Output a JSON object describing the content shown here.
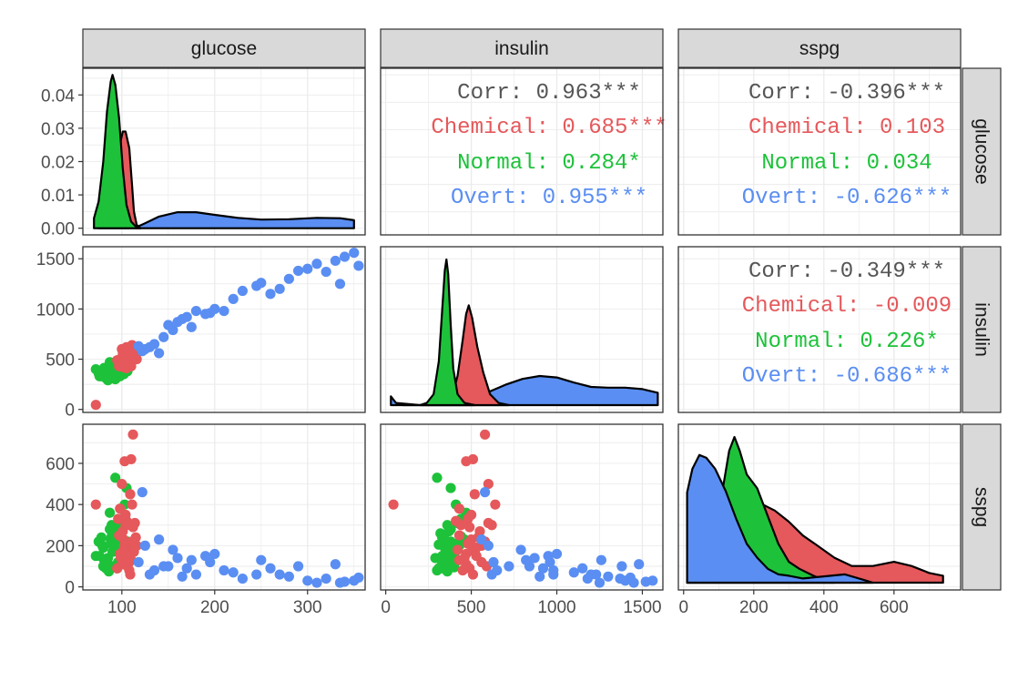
{
  "chart_data": {
    "type": "scatter-matrix",
    "variables": [
      "glucose",
      "insulin",
      "sspg"
    ],
    "groups": [
      {
        "name": "Chemical",
        "color": "#E5585B"
      },
      {
        "name": "Normal",
        "color": "#1DC23A"
      },
      {
        "name": "Overt",
        "color": "#5A8EF2"
      }
    ],
    "axes": {
      "glucose": {
        "range": [
          58,
          362
        ],
        "ticks": [
          100,
          200,
          300
        ]
      },
      "insulin": {
        "range": [
          -30,
          1620
        ],
        "ticks": [
          0,
          500,
          1000,
          1500
        ]
      },
      "sspg": {
        "range": [
          -15,
          790
        ],
        "ticks": [
          0,
          200,
          400,
          600
        ]
      },
      "glucose_density": {
        "range": [
          -0.002,
          0.048
        ],
        "ticks": [
          "0.00",
          "0.01",
          "0.02",
          "0.03",
          "0.04"
        ]
      }
    },
    "correlations": [
      {
        "pair": [
          "insulin",
          "glucose"
        ],
        "lines": [
          {
            "label": "Corr:",
            "value": "0.963***",
            "group": "all"
          },
          {
            "label": "Chemical:",
            "value": "0.685***",
            "group": "Chemical"
          },
          {
            "label": "Normal:",
            "value": "0.284*",
            "group": "Normal"
          },
          {
            "label": "Overt:",
            "value": "0.955***",
            "group": "Overt"
          }
        ]
      },
      {
        "pair": [
          "sspg",
          "glucose"
        ],
        "lines": [
          {
            "label": "Corr:",
            "value": "-0.396***",
            "group": "all"
          },
          {
            "label": "Chemical:",
            "value": "0.103",
            "group": "Chemical"
          },
          {
            "label": "Normal:",
            "value": "0.034",
            "group": "Normal"
          },
          {
            "label": "Overt:",
            "value": "-0.626***",
            "group": "Overt"
          }
        ]
      },
      {
        "pair": [
          "sspg",
          "insulin"
        ],
        "lines": [
          {
            "label": "Corr:",
            "value": "-0.349***",
            "group": "all"
          },
          {
            "label": "Chemical:",
            "value": "-0.009",
            "group": "Chemical"
          },
          {
            "label": "Normal:",
            "value": "0.226*",
            "group": "Normal"
          },
          {
            "label": "Overt:",
            "value": "-0.686***",
            "group": "Overt"
          }
        ]
      }
    ],
    "densities": {
      "glucose": {
        "Normal": [
          [
            70,
            0.003
          ],
          [
            75,
            0.008
          ],
          [
            80,
            0.02
          ],
          [
            84,
            0.035
          ],
          [
            88,
            0.044
          ],
          [
            90,
            0.046
          ],
          [
            93,
            0.043
          ],
          [
            97,
            0.033
          ],
          [
            101,
            0.018
          ],
          [
            105,
            0.007
          ],
          [
            110,
            0.002
          ],
          [
            115,
            0.0005
          ],
          [
            120,
            0
          ]
        ],
        "Chemical": [
          [
            75,
            0
          ],
          [
            80,
            0.002
          ],
          [
            86,
            0.006
          ],
          [
            92,
            0.014
          ],
          [
            97,
            0.024
          ],
          [
            101,
            0.029
          ],
          [
            104,
            0.029
          ],
          [
            108,
            0.024
          ],
          [
            111,
            0.013
          ],
          [
            113,
            0.005
          ],
          [
            116,
            0.001
          ],
          [
            120,
            0
          ]
        ],
        "Overt": [
          [
            115,
            0.0002
          ],
          [
            125,
            0.0015
          ],
          [
            140,
            0.0035
          ],
          [
            160,
            0.0048
          ],
          [
            180,
            0.0048
          ],
          [
            200,
            0.004
          ],
          [
            225,
            0.0031
          ],
          [
            250,
            0.0026
          ],
          [
            280,
            0.0027
          ],
          [
            310,
            0.0031
          ],
          [
            335,
            0.003
          ],
          [
            350,
            0.0024
          ]
        ]
      },
      "insulin": {
        "Normal": [
          [
            200,
            0
          ],
          [
            240,
            0.0003
          ],
          [
            280,
            0.0015
          ],
          [
            310,
            0.006
          ],
          [
            330,
            0.013
          ],
          [
            345,
            0.0185
          ],
          [
            355,
            0.02
          ],
          [
            365,
            0.018
          ],
          [
            380,
            0.011
          ],
          [
            395,
            0.005
          ],
          [
            420,
            0.0015
          ],
          [
            460,
            0.0003
          ],
          [
            520,
            0
          ]
        ],
        "Chemical": [
          [
            100,
            0
          ],
          [
            280,
            0
          ],
          [
            380,
            0.0005
          ],
          [
            420,
            0.004
          ],
          [
            450,
            0.009
          ],
          [
            470,
            0.0125
          ],
          [
            485,
            0.0137
          ],
          [
            505,
            0.012
          ],
          [
            535,
            0.008
          ],
          [
            570,
            0.0045
          ],
          [
            610,
            0.0015
          ],
          [
            660,
            0.0003
          ],
          [
            720,
            0
          ]
        ],
        "Overt": [
          [
            30,
            0.0012
          ],
          [
            60,
            0.0003
          ],
          [
            200,
            0
          ],
          [
            400,
            0.0003
          ],
          [
            500,
            0.0008
          ],
          [
            600,
            0.0018
          ],
          [
            700,
            0.0028
          ],
          [
            800,
            0.0036
          ],
          [
            900,
            0.004
          ],
          [
            1000,
            0.0038
          ],
          [
            1100,
            0.0031
          ],
          [
            1200,
            0.0025
          ],
          [
            1300,
            0.0024
          ],
          [
            1400,
            0.0024
          ],
          [
            1500,
            0.0022
          ],
          [
            1590,
            0.0017
          ]
        ]
      },
      "sspg": {
        "Normal": [
          [
            10,
            0
          ],
          [
            60,
            0.0005
          ],
          [
            90,
            0.002
          ],
          [
            110,
            0.0065
          ],
          [
            130,
            0.0095
          ],
          [
            145,
            0.0105
          ],
          [
            160,
            0.0095
          ],
          [
            180,
            0.0078
          ],
          [
            210,
            0.0068
          ],
          [
            240,
            0.0048
          ],
          [
            270,
            0.0028
          ],
          [
            300,
            0.0015
          ],
          [
            330,
            0.001
          ],
          [
            370,
            0.0005
          ],
          [
            400,
            0.0002
          ],
          [
            430,
            0
          ]
        ],
        "Chemical": [
          [
            10,
            0.0003
          ],
          [
            40,
            0.0015
          ],
          [
            70,
            0.003
          ],
          [
            100,
            0.0044
          ],
          [
            140,
            0.0054
          ],
          [
            180,
            0.0058
          ],
          [
            220,
            0.0057
          ],
          [
            260,
            0.0052
          ],
          [
            300,
            0.0044
          ],
          [
            340,
            0.0034
          ],
          [
            380,
            0.0027
          ],
          [
            430,
            0.0018
          ],
          [
            480,
            0.0012
          ],
          [
            540,
            0.0012
          ],
          [
            600,
            0.0015
          ],
          [
            650,
            0.0012
          ],
          [
            700,
            0.0007
          ],
          [
            740,
            0.0005
          ]
        ],
        "Overt": [
          [
            10,
            0.0065
          ],
          [
            25,
            0.0082
          ],
          [
            45,
            0.0092
          ],
          [
            65,
            0.009
          ],
          [
            90,
            0.0082
          ],
          [
            120,
            0.0066
          ],
          [
            150,
            0.0046
          ],
          [
            180,
            0.0028
          ],
          [
            210,
            0.0018
          ],
          [
            240,
            0.001
          ],
          [
            270,
            0.0006
          ],
          [
            300,
            0.0005
          ],
          [
            340,
            0.0003
          ],
          [
            380,
            0.0004
          ],
          [
            420,
            0.0005
          ],
          [
            460,
            0.0006
          ],
          [
            500,
            0.0003
          ],
          [
            540,
            0
          ]
        ]
      }
    },
    "points": {
      "Normal": [
        [
          81,
          413,
          130
        ],
        [
          84,
          370,
          110
        ],
        [
          80,
          345,
          190
        ],
        [
          75,
          360,
          220
        ],
        [
          72,
          400,
          150
        ],
        [
          78,
          330,
          240
        ],
        [
          86,
          300,
          80
        ],
        [
          90,
          350,
          100
        ],
        [
          88,
          420,
          210
        ],
        [
          94,
          380,
          180
        ],
        [
          92,
          320,
          260
        ],
        [
          96,
          400,
          120
        ],
        [
          85,
          290,
          140
        ],
        [
          83,
          310,
          90
        ],
        [
          89,
          360,
          300
        ],
        [
          91,
          430,
          200
        ],
        [
          95,
          350,
          170
        ],
        [
          98,
          460,
          230
        ],
        [
          100,
          390,
          160
        ],
        [
          97,
          340,
          250
        ],
        [
          101,
          370,
          290
        ],
        [
          103,
          410,
          400
        ],
        [
          99,
          440,
          330
        ],
        [
          93,
          300,
          530
        ],
        [
          87,
          380,
          280
        ],
        [
          79,
          350,
          200
        ],
        [
          76,
          330,
          150
        ],
        [
          82,
          400,
          110
        ],
        [
          86,
          360,
          75
        ],
        [
          104,
          420,
          190
        ],
        [
          106,
          380,
          220
        ],
        [
          102,
          350,
          140
        ],
        [
          95,
          330,
          90
        ],
        [
          90,
          390,
          170
        ],
        [
          88,
          340,
          230
        ],
        [
          84,
          410,
          130
        ],
        [
          80,
          360,
          100
        ],
        [
          92,
          370,
          270
        ],
        [
          96,
          420,
          310
        ],
        [
          100,
          350,
          185
        ],
        [
          98,
          330,
          120
        ],
        [
          94,
          400,
          95
        ],
        [
          89,
          440,
          245
        ],
        [
          91,
          310,
          205
        ],
        [
          87,
          470,
          360
        ],
        [
          105,
          380,
          480
        ]
      ],
      "Chemical": [
        [
          72,
          45,
          400
        ],
        [
          98,
          470,
          160
        ],
        [
          102,
          500,
          230
        ],
        [
          104,
          440,
          300
        ],
        [
          106,
          530,
          190
        ],
        [
          108,
          560,
          120
        ],
        [
          100,
          600,
          500
        ],
        [
          103,
          470,
          610
        ],
        [
          110,
          510,
          620
        ],
        [
          112,
          580,
          740
        ],
        [
          95,
          490,
          90
        ],
        [
          97,
          430,
          250
        ],
        [
          105,
          410,
          320
        ],
        [
          109,
          520,
          450
        ],
        [
          111,
          640,
          400
        ],
        [
          114,
          600,
          310
        ],
        [
          107,
          480,
          210
        ],
        [
          99,
          460,
          140
        ],
        [
          101,
          550,
          270
        ],
        [
          104,
          500,
          350
        ],
        [
          113,
          520,
          170
        ],
        [
          106,
          590,
          100
        ],
        [
          108,
          450,
          80
        ],
        [
          110,
          430,
          130
        ],
        [
          103,
          560,
          200
        ],
        [
          96,
          480,
          330
        ],
        [
          112,
          490,
          290
        ],
        [
          115,
          540,
          240
        ],
        [
          102,
          420,
          180
        ],
        [
          100,
          470,
          110
        ],
        [
          109,
          510,
          60
        ],
        [
          111,
          580,
          220
        ],
        [
          105,
          620,
          300
        ],
        [
          98,
          430,
          380
        ],
        [
          116,
          500,
          200
        ],
        [
          107,
          530,
          150
        ]
      ],
      "Overt": [
        [
          118,
          630,
          120
        ],
        [
          122,
          580,
          460
        ],
        [
          130,
          620,
          60
        ],
        [
          140,
          560,
          230
        ],
        [
          150,
          840,
          100
        ],
        [
          155,
          790,
          180
        ],
        [
          160,
          870,
          140
        ],
        [
          170,
          920,
          90
        ],
        [
          180,
          980,
          60
        ],
        [
          190,
          950,
          150
        ],
        [
          200,
          1000,
          160
        ],
        [
          210,
          980,
          80
        ],
        [
          220,
          1100,
          70
        ],
        [
          230,
          1180,
          40
        ],
        [
          250,
          1260,
          130
        ],
        [
          260,
          1150,
          90
        ],
        [
          270,
          1200,
          60
        ],
        [
          280,
          1300,
          50
        ],
        [
          290,
          1380,
          100
        ],
        [
          300,
          1400,
          30
        ],
        [
          310,
          1450,
          20
        ],
        [
          320,
          1370,
          40
        ],
        [
          330,
          1480,
          110
        ],
        [
          340,
          1520,
          25
        ],
        [
          350,
          1560,
          30
        ],
        [
          355,
          1430,
          45
        ],
        [
          145,
          720,
          100
        ],
        [
          175,
          820,
          130
        ],
        [
          135,
          650,
          80
        ],
        [
          125,
          600,
          200
        ],
        [
          165,
          900,
          50
        ],
        [
          195,
          960,
          120
        ],
        [
          245,
          1230,
          60
        ],
        [
          335,
          1250,
          20
        ]
      ]
    }
  }
}
